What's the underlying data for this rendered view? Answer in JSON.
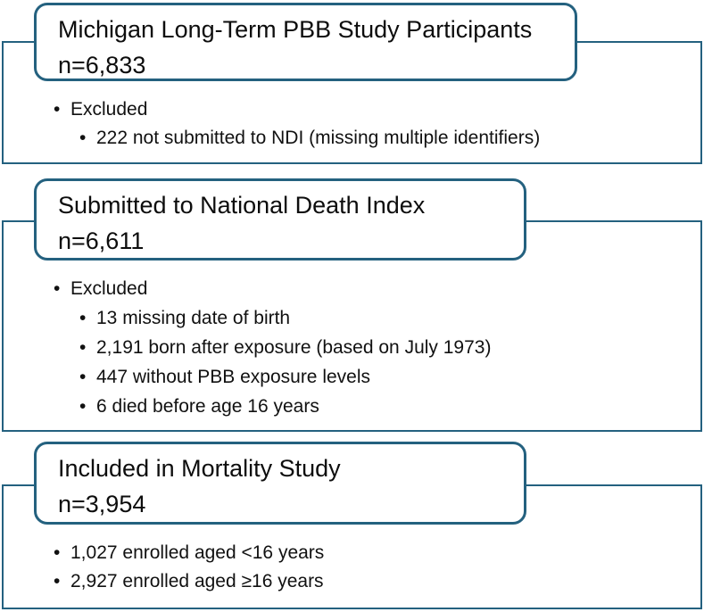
{
  "figure": {
    "type": "study-flow-diagram",
    "accent_border_color": "#24617f",
    "text_color": "#111111",
    "background_color": "#ffffff"
  },
  "sections": [
    {
      "id": "participants",
      "title": "Michigan Long-Term PBB Study Participants",
      "n": "n=6,833",
      "bullets": [
        {
          "level": 1,
          "text": "Excluded"
        },
        {
          "level": 2,
          "text": "222 not submitted to NDI (missing multiple identifiers)"
        }
      ]
    },
    {
      "id": "ndi",
      "title": "Submitted to National Death Index",
      "n": "n=6,611",
      "bullets": [
        {
          "level": 1,
          "text": "Excluded"
        },
        {
          "level": 2,
          "text": "13 missing date of birth"
        },
        {
          "level": 2,
          "text": "2,191 born after exposure (based on July 1973)"
        },
        {
          "level": 2,
          "text": "447 without PBB exposure levels"
        },
        {
          "level": 2,
          "text": "6 died before age 16 years"
        }
      ]
    },
    {
      "id": "mortality",
      "title": "Included in Mortality Study",
      "n": "n=3,954",
      "bullets": [
        {
          "level": 1,
          "text": "1,027 enrolled aged <16 years"
        },
        {
          "level": 1,
          "text": "2,927 enrolled aged ≥16 years"
        }
      ]
    }
  ]
}
